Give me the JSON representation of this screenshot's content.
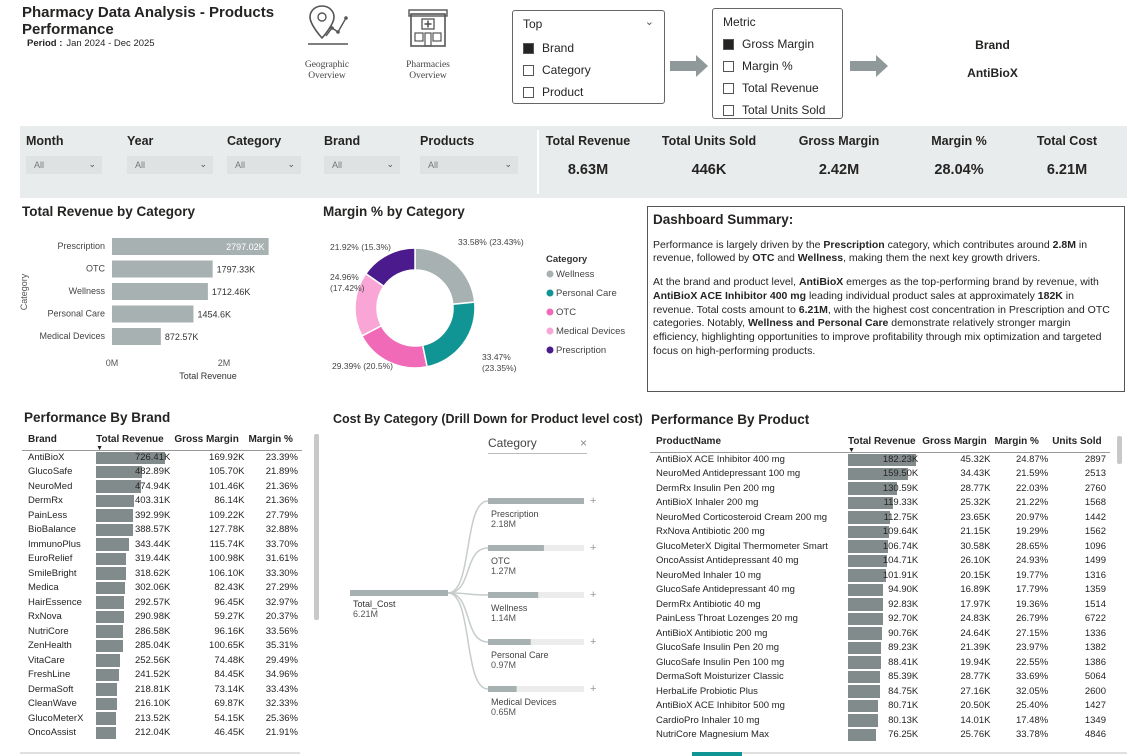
{
  "header": {
    "title": "Pharmacy Data Analysis - Products Performance",
    "period_label": "Period :",
    "period_value": "Jan 2024 - Dec 2025"
  },
  "nav": [
    {
      "label": "Geographic Overview",
      "icon": "map-pin-chart-icon"
    },
    {
      "label": "Pharmacies Overview",
      "icon": "pharmacy-building-icon"
    }
  ],
  "top_slicer": {
    "title": "Top",
    "options": [
      {
        "label": "Brand",
        "checked": true
      },
      {
        "label": "Category",
        "checked": false
      },
      {
        "label": "Product",
        "checked": false
      }
    ]
  },
  "metric_slicer": {
    "title": "Metric",
    "options": [
      {
        "label": "Gross Margin",
        "checked": true
      },
      {
        "label": "Margin %",
        "checked": false
      },
      {
        "label": "Total Revenue",
        "checked": false
      },
      {
        "label": "Total Units Sold",
        "checked": false
      }
    ]
  },
  "selection": {
    "label": "Brand",
    "value": "AntiBioX"
  },
  "filters": [
    {
      "label": "Month",
      "value": "All"
    },
    {
      "label": "Year",
      "value": "All"
    },
    {
      "label": "Category",
      "value": "All"
    },
    {
      "label": "Brand",
      "value": "All"
    },
    {
      "label": "Products",
      "value": "All"
    }
  ],
  "kpis": [
    {
      "label": "Total Revenue",
      "value": "8.63M"
    },
    {
      "label": "Total Units Sold",
      "value": "446K"
    },
    {
      "label": "Gross Margin",
      "value": "2.42M"
    },
    {
      "label": "Margin %",
      "value": "28.04%"
    },
    {
      "label": "Total Cost",
      "value": "6.21M"
    }
  ],
  "revenue_by_category": {
    "title": "Total Revenue by Category",
    "xlabel": "Total Revenue",
    "ylabel": "Category",
    "ticks": [
      "0M",
      "2M"
    ],
    "bar_color": "#a8b1b1",
    "items": [
      {
        "category": "Prescription",
        "value": 2797.02,
        "label": "2797.02K"
      },
      {
        "category": "OTC",
        "value": 1797.33,
        "label": "1797.33K"
      },
      {
        "category": "Wellness",
        "value": 1712.46,
        "label": "1712.46K"
      },
      {
        "category": "Personal Care",
        "value": 1454.6,
        "label": "1454.6K"
      },
      {
        "category": "Medical Devices",
        "value": 872.57,
        "label": "872.57K"
      }
    ]
  },
  "margin_by_category": {
    "title": "Margin % by Category",
    "legend_title": "Category",
    "slices": [
      {
        "name": "Wellness",
        "value": 33.58,
        "share": 23.43,
        "label": "33.58% (23.43%)",
        "color": "#a8b1b1"
      },
      {
        "name": "Personal Care",
        "value": 33.47,
        "share": 23.35,
        "label": "33.47% (23.35%)",
        "color": "#119494"
      },
      {
        "name": "OTC",
        "value": 29.39,
        "share": 20.5,
        "label": "29.39% (20.5%)",
        "color": "#f06ab8"
      },
      {
        "name": "Medical Devices",
        "value": 24.96,
        "share": 17.42,
        "label": "24.96% (17.42%)",
        "color": "#f9a6d6"
      },
      {
        "name": "Prescription",
        "value": 21.92,
        "share": 15.3,
        "label": "21.92% (15.3%)",
        "color": "#4b1a8c"
      }
    ]
  },
  "summary": {
    "title": "Dashboard Summary:",
    "p1": [
      {
        "t": "Performance is largely driven by the ",
        "b": false
      },
      {
        "t": "Prescription",
        "b": true
      },
      {
        "t": " category, which contributes around ",
        "b": false
      },
      {
        "t": "2.8M",
        "b": true
      },
      {
        "t": " in revenue, followed by ",
        "b": false
      },
      {
        "t": "OTC",
        "b": true
      },
      {
        "t": " and ",
        "b": false
      },
      {
        "t": "Wellness",
        "b": true
      },
      {
        "t": ", making them the next key growth drivers.",
        "b": false
      }
    ],
    "p2": [
      {
        "t": "At the brand and product level, ",
        "b": false
      },
      {
        "t": "AntiBioX",
        "b": true
      },
      {
        "t": " emerges as the top-performing brand by revenue, with ",
        "b": false
      },
      {
        "t": "AntiBioX ACE Inhibitor 400 mg",
        "b": true
      },
      {
        "t": " leading individual product sales at approximately ",
        "b": false
      },
      {
        "t": "182K",
        "b": true
      },
      {
        "t": " in revenue. Total costs amount to ",
        "b": false
      },
      {
        "t": "6.21M",
        "b": true
      },
      {
        "t": ", with the highest cost concentration in Prescription and OTC categories. Notably, ",
        "b": false
      },
      {
        "t": "Wellness and Personal Care",
        "b": true
      },
      {
        "t": " demonstrate relatively stronger margin efficiency, highlighting opportunities to improve profitability through mix optimization and targeted focus on high-performing products.",
        "b": false
      }
    ]
  },
  "brand_table": {
    "title": "Performance By Brand",
    "columns": [
      "Brand",
      "Total Revenue",
      "Gross Margin",
      "Margin %"
    ],
    "rows": [
      [
        "AntiBioX",
        726.41,
        "726.41K",
        "169.92K",
        "23.39%"
      ],
      [
        "GlucoSafe",
        482.89,
        "482.89K",
        "105.70K",
        "21.89%"
      ],
      [
        "NeuroMed",
        474.94,
        "474.94K",
        "101.46K",
        "21.36%"
      ],
      [
        "DermRx",
        403.31,
        "403.31K",
        "86.14K",
        "21.36%"
      ],
      [
        "PainLess",
        392.99,
        "392.99K",
        "109.22K",
        "27.79%"
      ],
      [
        "BioBalance",
        388.57,
        "388.57K",
        "127.78K",
        "32.88%"
      ],
      [
        "ImmunoPlus",
        343.44,
        "343.44K",
        "115.74K",
        "33.70%"
      ],
      [
        "EuroRelief",
        319.44,
        "319.44K",
        "100.98K",
        "31.61%"
      ],
      [
        "SmileBright",
        318.62,
        "318.62K",
        "106.10K",
        "33.30%"
      ],
      [
        "Medica",
        302.06,
        "302.06K",
        "82.43K",
        "27.29%"
      ],
      [
        "HairEssence",
        292.57,
        "292.57K",
        "96.45K",
        "32.97%"
      ],
      [
        "RxNova",
        290.98,
        "290.98K",
        "59.27K",
        "20.37%"
      ],
      [
        "NutriCore",
        286.58,
        "286.58K",
        "96.16K",
        "33.56%"
      ],
      [
        "ZenHealth",
        285.04,
        "285.04K",
        "100.65K",
        "35.31%"
      ],
      [
        "VitaCare",
        252.56,
        "252.56K",
        "74.48K",
        "29.49%"
      ],
      [
        "FreshLine",
        241.52,
        "241.52K",
        "84.45K",
        "34.96%"
      ],
      [
        "DermaSoft",
        218.81,
        "218.81K",
        "73.14K",
        "33.43%"
      ],
      [
        "CleanWave",
        216.1,
        "216.10K",
        "69.87K",
        "32.33%"
      ],
      [
        "GlucoMeterX",
        213.52,
        "213.52K",
        "54.15K",
        "25.36%"
      ],
      [
        "OncoAssist",
        212.04,
        "212.04K",
        "46.45K",
        "21.91%"
      ]
    ]
  },
  "cost_tree": {
    "title": "Cost By Category (Drill Down for Product level cost)",
    "level_label": "Category",
    "root_label": "Total_Cost",
    "root_value": "6.21M",
    "nodes": [
      {
        "name": "Prescription",
        "value": 2.18,
        "label": "2.18M"
      },
      {
        "name": "OTC",
        "value": 1.27,
        "label": "1.27M"
      },
      {
        "name": "Wellness",
        "value": 1.14,
        "label": "1.14M"
      },
      {
        "name": "Personal Care",
        "value": 0.97,
        "label": "0.97M"
      },
      {
        "name": "Medical Devices",
        "value": 0.65,
        "label": "0.65M"
      }
    ]
  },
  "product_table": {
    "title": "Performance By Product",
    "columns": [
      "ProductName",
      "Total Revenue",
      "Gross Margin",
      "Margin %",
      "Units Sold"
    ],
    "rows": [
      [
        "AntiBioX ACE Inhibitor 400 mg",
        182.23,
        "182.23K",
        "45.32K",
        "24.87%",
        "2897"
      ],
      [
        "NeuroMed Antidepressant 100 mg",
        159.5,
        "159.50K",
        "34.43K",
        "21.59%",
        "2513"
      ],
      [
        "DermRx Insulin Pen 200 mg",
        130.59,
        "130.59K",
        "28.77K",
        "22.03%",
        "2760"
      ],
      [
        "AntiBioX Inhaler 200 mg",
        119.33,
        "119.33K",
        "25.32K",
        "21.22%",
        "1568"
      ],
      [
        "NeuroMed Corticosteroid Cream 200 mg",
        112.75,
        "112.75K",
        "23.65K",
        "20.97%",
        "1442"
      ],
      [
        "RxNova Antibiotic 200 mg",
        109.64,
        "109.64K",
        "21.15K",
        "19.29%",
        "1562"
      ],
      [
        "GlucoMeterX Digital Thermometer Smart",
        106.74,
        "106.74K",
        "30.58K",
        "28.65%",
        "1096"
      ],
      [
        "OncoAssist Antidepressant 40 mg",
        104.71,
        "104.71K",
        "26.10K",
        "24.93%",
        "1499"
      ],
      [
        "NeuroMed Inhaler 10 mg",
        101.91,
        "101.91K",
        "20.15K",
        "19.77%",
        "1316"
      ],
      [
        "GlucoSafe Antidepressant 40 mg",
        94.9,
        "94.90K",
        "16.89K",
        "17.79%",
        "1359"
      ],
      [
        "DermRx Antibiotic 40 mg",
        92.83,
        "92.83K",
        "17.97K",
        "19.36%",
        "1514"
      ],
      [
        "PainLess Throat Lozenges 20 mg",
        92.7,
        "92.70K",
        "24.83K",
        "26.79%",
        "6722"
      ],
      [
        "AntiBioX Antibiotic 200 mg",
        90.76,
        "90.76K",
        "24.64K",
        "27.15%",
        "1336"
      ],
      [
        "GlucoSafe Insulin Pen 20 mg",
        89.23,
        "89.23K",
        "21.39K",
        "23.97%",
        "1382"
      ],
      [
        "GlucoSafe Insulin Pen 100 mg",
        88.41,
        "88.41K",
        "19.94K",
        "22.55%",
        "1386"
      ],
      [
        "DermaSoft Moisturizer Classic",
        85.39,
        "85.39K",
        "28.77K",
        "33.69%",
        "5064"
      ],
      [
        "HerbaLife Probiotic Plus",
        84.75,
        "84.75K",
        "27.16K",
        "32.05%",
        "2600"
      ],
      [
        "AntiBioX ACE Inhibitor 500 mg",
        80.71,
        "80.71K",
        "20.50K",
        "25.40%",
        "1427"
      ],
      [
        "CardioPro Inhaler 10 mg",
        80.13,
        "80.13K",
        "14.01K",
        "17.48%",
        "1349"
      ],
      [
        "NutriCore Magnesium Max",
        76.25,
        "76.25K",
        "25.76K",
        "33.78%",
        "4846"
      ]
    ]
  }
}
